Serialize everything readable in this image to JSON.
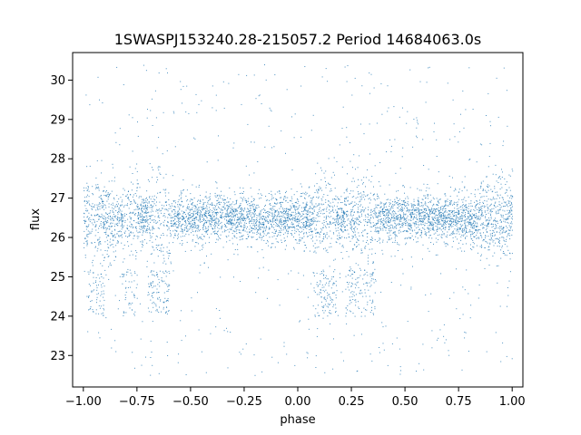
{
  "chart_data": {
    "type": "scatter",
    "title": "1SWASPJ153240.28-215057.2 Period 14684063.0s",
    "xlabel": "phase",
    "ylabel": "flux",
    "xlim": [
      -1.05,
      1.05
    ],
    "ylim": [
      22.2,
      30.7
    ],
    "x_ticks": [
      -1.0,
      -0.75,
      -0.5,
      -0.25,
      0.0,
      0.25,
      0.5,
      0.75,
      1.0
    ],
    "x_tick_labels": [
      "−1.00",
      "−0.75",
      "−0.50",
      "−0.25",
      "0.00",
      "0.25",
      "0.50",
      "0.75",
      "1.00"
    ],
    "y_ticks": [
      23,
      24,
      25,
      26,
      27,
      28,
      29,
      30
    ],
    "y_tick_labels": [
      "23",
      "24",
      "25",
      "26",
      "27",
      "28",
      "29",
      "30"
    ],
    "grid": false,
    "legend": "none",
    "marker_color": "#1f77b4",
    "series": [
      {
        "phase_range": [
          -1.0,
          1.0
        ],
        "baseline_flux": 26.5,
        "core_flux_range": [
          25.9,
          27.1
        ],
        "outlier_flux_range": [
          22.5,
          30.4
        ],
        "dip_flux_range": [
          24.0,
          25.2
        ],
        "dip_phase_intervals": [
          [
            -0.98,
            -0.9
          ],
          [
            -0.82,
            -0.75
          ],
          [
            -0.7,
            -0.6
          ],
          [
            0.07,
            0.18
          ],
          [
            0.22,
            0.36
          ]
        ]
      }
    ]
  }
}
